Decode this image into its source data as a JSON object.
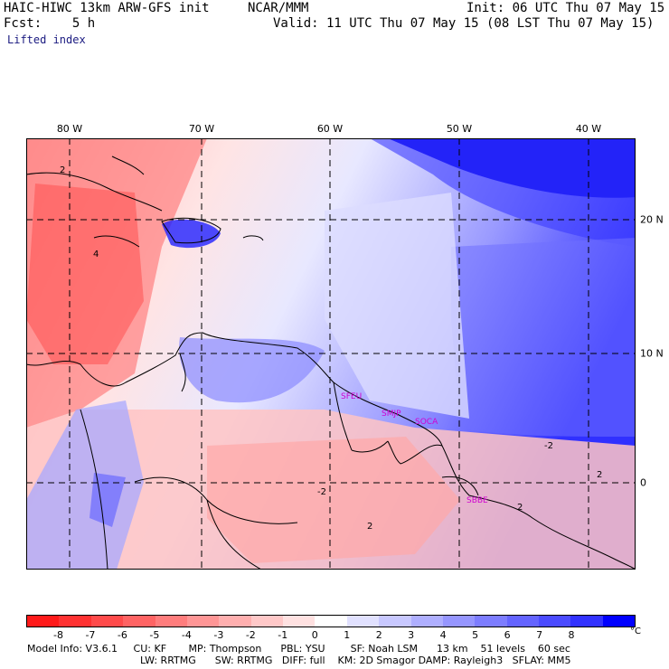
{
  "header": {
    "model_title": "HAIC-HIWC 13km ARW-GFS init",
    "agency": "NCAR/MMM",
    "init": "Init: 06 UTC Thu 07 May 15",
    "fcst": "Fcst:    5 h",
    "valid": "Valid: 11 UTC Thu 07 May 15 (08 LST Thu 07 May 15)",
    "field": "Lifted index"
  },
  "map": {
    "lon_labels": [
      "80 W",
      "70 W",
      "60 W",
      "50 W",
      "40 W"
    ],
    "lat_labels": [
      "20 N",
      "10 N",
      "0"
    ],
    "contour_labels": [
      "2",
      "4",
      "-2",
      "2",
      "-2",
      "2",
      "2"
    ],
    "stations": [
      "SFEU",
      "SMJP",
      "SOCA",
      "SBBE"
    ]
  },
  "colorbar": {
    "ticks": [
      "-8",
      "-7",
      "-6",
      "-5",
      "-4",
      "-3",
      "-2",
      "-1",
      "0",
      "1",
      "2",
      "3",
      "4",
      "5",
      "6",
      "7",
      "8"
    ],
    "unit": "°C",
    "colors": [
      "#ff1a1a",
      "#ff3232",
      "#ff4b4b",
      "#ff6464",
      "#ff7d7d",
      "#ff9696",
      "#ffafaf",
      "#ffc8c8",
      "#ffe1e1",
      "#ffffff",
      "#e1e1ff",
      "#c8c8ff",
      "#afafff",
      "#9696ff",
      "#7d7dff",
      "#6464ff",
      "#4b4bff",
      "#3232ff",
      "#0000ff"
    ]
  },
  "model_info": {
    "line1": "Model Info: V3.6.1     CU: KF       MP: Thompson      PBL: YSU        SF: Noah LSM      13 km    51 levels    60 sec",
    "line2": "LW: RRTMG      SW: RRTMG   DIFF: full    KM: 2D Smagor DAMP: Rayleigh3   SFLAY: MM5"
  }
}
